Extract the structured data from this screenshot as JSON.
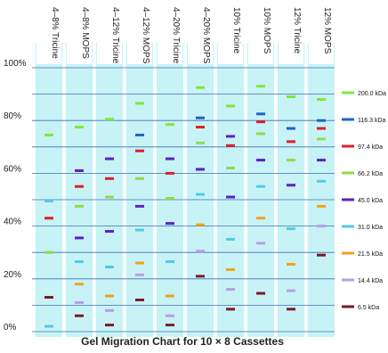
{
  "chart_data": {
    "type": "scatter",
    "title": "Gel Migration Chart for 10 × 8 Cassettes",
    "ylim": [
      0,
      100
    ],
    "y_ticks": [
      "0%",
      "20%",
      "40%",
      "60%",
      "80%",
      "100%"
    ],
    "y_tick_values": [
      0,
      20,
      40,
      60,
      80,
      100
    ],
    "grid": true,
    "legend_position": "right",
    "lanes": [
      "4–8% Tricine",
      "4–8% MOPS",
      "4–12% Tricine",
      "4–12% MOPS",
      "4–20% Tricine",
      "4–20% MOPS",
      "10% Tricine",
      "10% MOPS",
      "12% Tricine",
      "12% MOPS"
    ],
    "series": [
      {
        "name": "200.0 kDa",
        "color": "#7ee83a",
        "values": [
          74.5,
          77.5,
          80.5,
          86.5,
          78.5,
          92.5,
          85.5,
          93.0,
          89.0,
          88.0
        ]
      },
      {
        "name": "116.3 kDa",
        "color": "#1f63c9",
        "values": [
          null,
          null,
          null,
          74.5,
          null,
          81.0,
          null,
          82.5,
          77.0,
          80.0
        ]
      },
      {
        "name": "97.4 kDa",
        "color": "#d8222b",
        "values": [
          null,
          null,
          null,
          null,
          null,
          77.5,
          null,
          79.5,
          72.0,
          77.0
        ]
      },
      {
        "name": "66.2 kDa",
        "color": "#8edd4a",
        "values": [
          null,
          null,
          null,
          null,
          null,
          71.5,
          62.0,
          75.0,
          65.0,
          73.0
        ]
      },
      {
        "name": "45.0 kDa",
        "color": "#5b22c4",
        "values": [
          null,
          61.0,
          65.5,
          null,
          65.5,
          61.5,
          74.0,
          65.0,
          55.5,
          65.0
        ]
      },
      {
        "name": "31.0 kDa",
        "color": "#4fcbe8",
        "values": [
          49.5,
          null,
          null,
          38.5,
          null,
          52.0,
          35.0,
          55.0,
          39.0,
          57.0
        ]
      },
      {
        "name": "21.5 kDa",
        "color": "#f2a31c",
        "values": [
          null,
          18.0,
          13.5,
          26.0,
          13.5,
          40.5,
          23.5,
          43.0,
          25.5,
          47.5
        ]
      },
      {
        "name": "14.4 kDa",
        "color": "#b79ee8",
        "values": [
          null,
          11.0,
          8.0,
          21.5,
          6.0,
          30.5,
          16.0,
          33.5,
          15.5,
          40.0
        ]
      },
      {
        "name": "6.5 kDa",
        "color": "#7a1a28",
        "values": [
          13.0,
          6.0,
          2.5,
          12.0,
          2.5,
          21.0,
          8.5,
          14.5,
          8.5,
          29.0
        ]
      }
    ],
    "extra_bands": [
      {
        "lane": 0,
        "value": 43.0,
        "color": "#d8222b"
      },
      {
        "lane": 0,
        "value": 30.0,
        "color": "#8edd4a"
      },
      {
        "lane": 0,
        "value": 2.0,
        "color": "#4fcbe8"
      },
      {
        "lane": 1,
        "value": 55.0,
        "color": "#d8222b"
      },
      {
        "lane": 1,
        "value": 47.5,
        "color": "#8edd4a"
      },
      {
        "lane": 1,
        "value": 35.5,
        "color": "#5b22c4"
      },
      {
        "lane": 1,
        "value": 26.5,
        "color": "#4fcbe8"
      },
      {
        "lane": 2,
        "value": 58.0,
        "color": "#d8222b"
      },
      {
        "lane": 2,
        "value": 51.0,
        "color": "#8edd4a"
      },
      {
        "lane": 2,
        "value": 38.0,
        "color": "#5b22c4"
      },
      {
        "lane": 2,
        "value": 24.5,
        "color": "#4fcbe8"
      },
      {
        "lane": 3,
        "value": 68.5,
        "color": "#d8222b"
      },
      {
        "lane": 3,
        "value": 58.0,
        "color": "#8edd4a"
      },
      {
        "lane": 3,
        "value": 47.5,
        "color": "#5b22c4"
      },
      {
        "lane": 4,
        "value": 60.0,
        "color": "#d8222b"
      },
      {
        "lane": 4,
        "value": 50.5,
        "color": "#8edd4a"
      },
      {
        "lane": 4,
        "value": 41.0,
        "color": "#5b22c4"
      },
      {
        "lane": 4,
        "value": 26.5,
        "color": "#4fcbe8"
      },
      {
        "lane": 6,
        "value": 70.5,
        "color": "#d8222b"
      },
      {
        "lane": 6,
        "value": 51.0,
        "color": "#5b22c4"
      }
    ]
  }
}
